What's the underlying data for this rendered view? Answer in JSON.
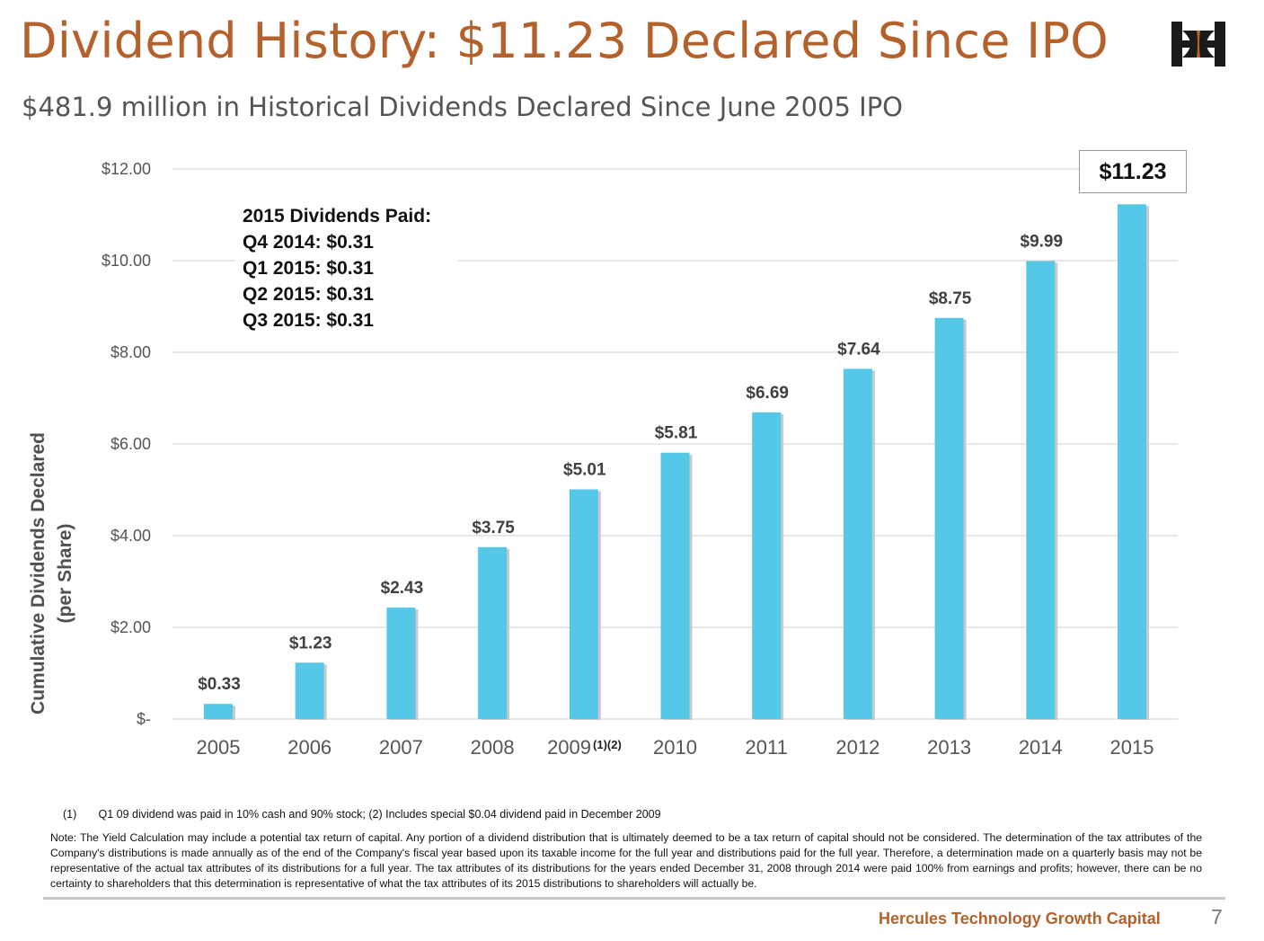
{
  "title": "Dividend History: $11.23 Declared Since IPO",
  "subtitle": "$481.9 million in Historical Dividends Declared Since June 2005 IPO",
  "logo_icon": "hercules-logo-icon",
  "colors": {
    "title": "#b5612b",
    "bar": "#55c8e8",
    "bar_shadow": "#c9c9c9",
    "grid": "#d9d9d9",
    "company": "#b5612b"
  },
  "chart_data": {
    "type": "bar",
    "categories": [
      "2005",
      "2006",
      "2007",
      "2008",
      "2009",
      "2010",
      "2011",
      "2012",
      "2013",
      "2014",
      "2015"
    ],
    "category_annotations": {
      "2009": "(1)(2)"
    },
    "values": [
      0.33,
      1.23,
      2.43,
      3.75,
      5.01,
      5.81,
      6.69,
      7.64,
      8.75,
      9.99,
      11.23
    ],
    "data_labels": [
      "$0.33",
      "$1.23",
      "$2.43",
      "$3.75",
      "$5.01",
      "$5.81",
      "$6.69",
      "$7.64",
      "$8.75",
      "$9.99",
      "$11.23"
    ],
    "title": "",
    "xlabel": "",
    "ylabel": "Cumulative Dividends Declared (per Share)",
    "ylabel_lines": [
      "Cumulative Dividends Declared",
      "(per Share)"
    ],
    "ylim": [
      0,
      12
    ],
    "yticks": [
      0,
      2,
      4,
      6,
      8,
      10,
      12
    ],
    "ytick_labels": [
      "$-",
      "$2.00",
      "$4.00",
      "$6.00",
      "$8.00",
      "$10.00",
      "$12.00"
    ],
    "grid": true,
    "legend": "none"
  },
  "callout": {
    "heading": "2015 Dividends Paid:",
    "lines": [
      "Q4 2014: $0.31",
      "Q1 2015: $0.31",
      "Q2 2015: $0.31",
      "Q3 2015: $0.31"
    ]
  },
  "total_callout": "$11.23",
  "footnote": {
    "number": "(1)",
    "text": "Q1 09 dividend was paid in 10% cash and  90% stock; (2) Includes special $0.04 dividend paid in December 2009"
  },
  "note": "Note: The Yield Calculation may include a potential tax return of capital. Any portion of a dividend distribution that is ultimately deemed to be a tax return of capital should not be considered.  The determination of the tax attributes of the Company's distributions is made annually as of the end of the Company's fiscal year based upon its taxable income for the full year and distributions paid for the full year. Therefore, a determination made on a quarterly basis may not be representative of the actual tax attributes of its distributions for a full year. The tax attributes of its distributions for the years ended December 31, 2008 through 2014 were paid 100% from earnings and profits; however, there can be no certainty to shareholders that this determination is representative of what the tax attributes of its  2015 distributions to shareholders will actually be.",
  "company": "Hercules Technology Growth Capital",
  "page_number": "7"
}
